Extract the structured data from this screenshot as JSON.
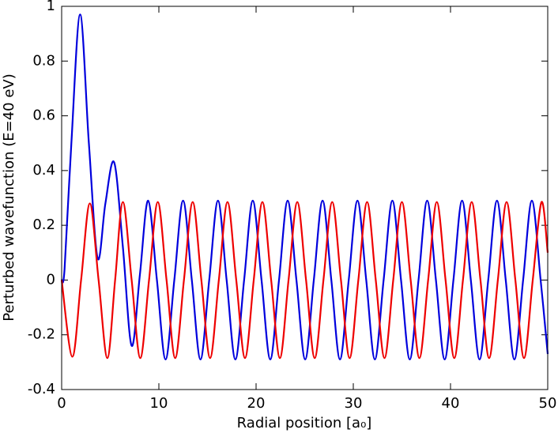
{
  "chart_data": {
    "type": "line",
    "xlabel": "Radial position [a₀]",
    "ylabel": "Perturbed wavefunction (E=40 eV)",
    "xlim": [
      0,
      50
    ],
    "ylim": [
      -0.4,
      1
    ],
    "xticks": [
      0,
      10,
      20,
      30,
      40,
      50
    ],
    "yticks": [
      -0.4,
      -0.2,
      0,
      0.2,
      0.4,
      0.6,
      0.8,
      1
    ],
    "series": [
      {
        "color": "#0000dd",
        "x": [
          0,
          0.3,
          1.0,
          1.9,
          2.8,
          3.7,
          4.5,
          5.4,
          6.3,
          7.2,
          8.05,
          8.9,
          9.8,
          10.69,
          11.59,
          12.49,
          13.39,
          14.28,
          15.18,
          16.08,
          16.97,
          17.87,
          18.77,
          19.66,
          20.56,
          21.46,
          22.36,
          23.25,
          24.15,
          25.05,
          25.94,
          26.84,
          27.74,
          28.63,
          29.53,
          30.43,
          31.33,
          32.22,
          33.12,
          34.02,
          34.91,
          35.81,
          36.71,
          37.6,
          38.5,
          39.4,
          40.3,
          41.19,
          42.09,
          42.99,
          43.88,
          44.78,
          45.68,
          46.57,
          47.47,
          48.37,
          49.27,
          50
        ],
        "values": [
          0,
          0.04,
          0.5,
          0.97,
          0.5,
          0.08,
          0.28,
          0.43,
          0.12,
          -0.24,
          0.02,
          0.29,
          0,
          -0.29,
          0,
          0.29,
          0,
          -0.29,
          0,
          0.29,
          0,
          -0.29,
          0,
          0.29,
          0,
          -0.29,
          0,
          0.29,
          0,
          -0.29,
          0,
          0.29,
          0,
          -0.29,
          0,
          0.29,
          0,
          -0.29,
          0,
          0.29,
          0,
          -0.29,
          0,
          0.29,
          0,
          -0.29,
          0,
          0.29,
          0,
          -0.29,
          0,
          0.29,
          0,
          -0.29,
          0,
          0.29,
          0,
          -0.27
        ]
      },
      {
        "color": "#ee0000",
        "x": [
          0,
          1.1,
          2.0,
          2.9,
          3.8,
          4.7,
          5.5,
          6.3,
          7.2,
          8.09,
          8.99,
          9.89,
          10.79,
          11.68,
          12.58,
          13.48,
          14.37,
          15.27,
          16.17,
          17.06,
          17.96,
          18.86,
          19.76,
          20.65,
          21.55,
          22.45,
          23.34,
          24.24,
          25.14,
          26.03,
          26.93,
          27.83,
          28.73,
          29.62,
          30.52,
          31.42,
          32.31,
          33.21,
          34.11,
          35.0,
          35.9,
          36.8,
          37.7,
          38.59,
          39.49,
          40.39,
          41.28,
          42.18,
          43.08,
          43.97,
          44.87,
          45.77,
          46.67,
          47.56,
          48.46,
          49.36,
          50
        ],
        "values": [
          0,
          -0.28,
          0,
          0.28,
          0,
          -0.285,
          0,
          0.285,
          0,
          -0.285,
          0,
          0.285,
          0,
          -0.285,
          0,
          0.285,
          0,
          -0.285,
          0,
          0.285,
          0,
          -0.285,
          0,
          0.285,
          0,
          -0.285,
          0,
          0.285,
          0,
          -0.285,
          0,
          0.285,
          0,
          -0.285,
          0,
          0.285,
          0,
          -0.285,
          0,
          0.285,
          0,
          -0.285,
          0,
          0.285,
          0,
          -0.285,
          0,
          0.285,
          0,
          -0.285,
          0,
          0.285,
          0,
          -0.285,
          0,
          0.285,
          0.1
        ]
      }
    ]
  }
}
